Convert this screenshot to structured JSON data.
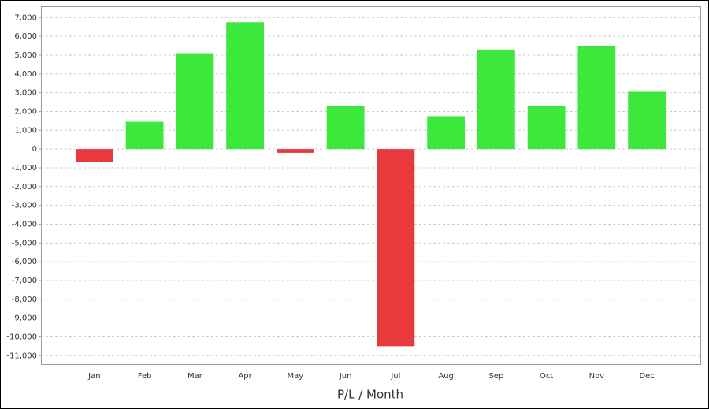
{
  "chart_data": {
    "type": "bar",
    "x_label": "P/L / Month",
    "categories": [
      "Jan",
      "Feb",
      "Mar",
      "Apr",
      "May",
      "Jun",
      "Jul",
      "Aug",
      "Sep",
      "Oct",
      "Nov",
      "Dec"
    ],
    "values": [
      -700,
      1450,
      5100,
      6750,
      -200,
      2300,
      -10500,
      1750,
      5300,
      2300,
      5500,
      3050
    ],
    "positive_color": "#3ce83c",
    "negative_color": "#e8393d",
    "ylim": [
      -11450,
      7600
    ],
    "yticks": [
      {
        "value": 7000,
        "label": "7,000"
      },
      {
        "value": 6000,
        "label": "6,000"
      },
      {
        "value": 5000,
        "label": "5,000"
      },
      {
        "value": 4000,
        "label": "4,000"
      },
      {
        "value": 3000,
        "label": "3,000"
      },
      {
        "value": 2000,
        "label": "2,000"
      },
      {
        "value": 1000,
        "label": "1,000"
      },
      0,
      {
        "value": -1000,
        "label": "-1,000"
      },
      {
        "value": -2000,
        "label": "-2,000"
      },
      {
        "value": -3000,
        "label": "-3,000"
      },
      {
        "value": -4000,
        "label": "-4,000"
      },
      {
        "value": -5000,
        "label": "-5,000"
      },
      {
        "value": -6000,
        "label": "-6,000"
      },
      {
        "value": -7000,
        "label": "-7,000"
      },
      {
        "value": -8000,
        "label": "-8,000"
      },
      {
        "value": -9000,
        "label": "-9,000"
      },
      {
        "value": -10000,
        "label": "-10,000"
      },
      {
        "value": -11000,
        "label": "-11,000"
      }
    ],
    "grid": true
  }
}
